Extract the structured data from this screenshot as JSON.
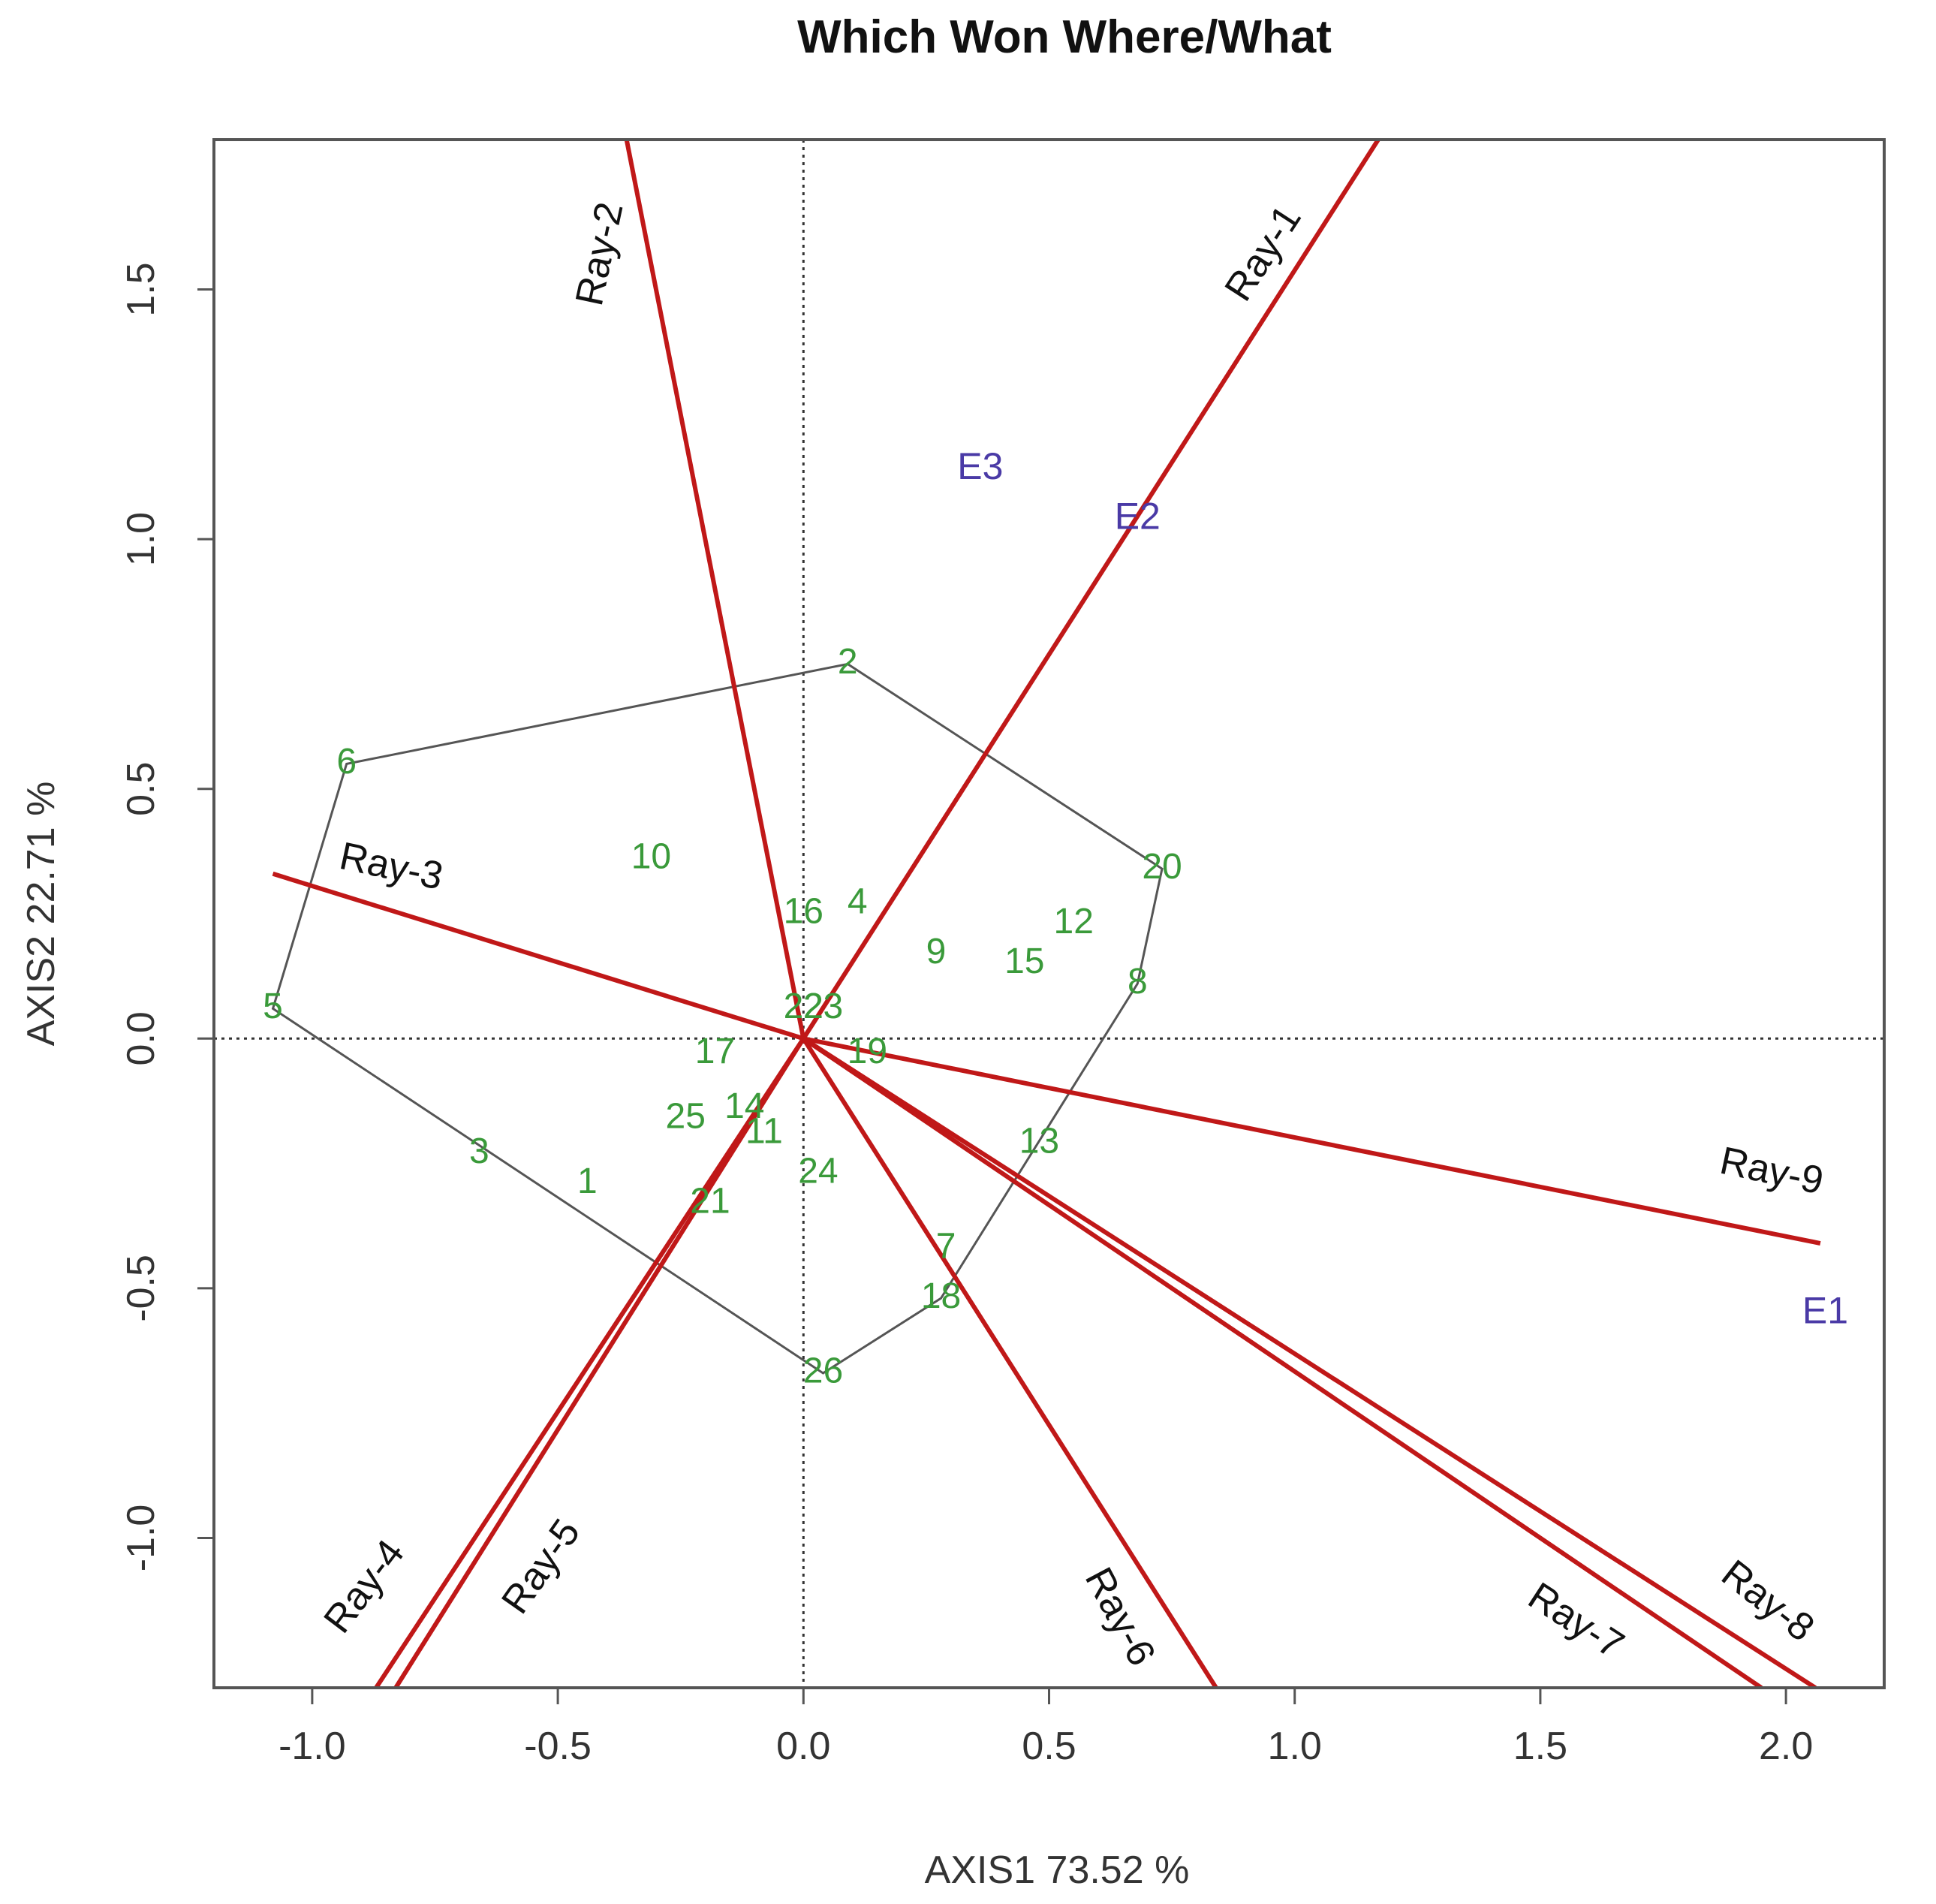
{
  "chart_data": {
    "type": "scatter",
    "subtype": "GGE biplot - which won where/what",
    "title": "Which Won Where/What",
    "xlabel": "AXIS1 73.52 %",
    "ylabel": "AXIS2 22.71 %",
    "xlim": [
      -1.2,
      2.2
    ],
    "ylim": [
      -1.3,
      1.8
    ],
    "xticks": [
      -1.0,
      -0.5,
      0.0,
      0.5,
      1.0,
      1.5,
      2.0
    ],
    "xtick_labels": [
      "-1.0",
      "-0.5",
      "0.0",
      "0.5",
      "1.0",
      "1.5",
      "2.0"
    ],
    "yticks": [
      -1.0,
      -0.5,
      0.0,
      0.5,
      1.0,
      1.5
    ],
    "ytick_labels": [
      "-1.0",
      "-0.5",
      "0.0",
      "0.5",
      "1.0",
      "1.5"
    ],
    "reference_lines": {
      "x": 0,
      "y": 0,
      "style": "dotted"
    },
    "genotypes": [
      {
        "label": "1",
        "x": -0.44,
        "y": -0.29
      },
      {
        "label": "2",
        "x": 0.09,
        "y": 0.75
      },
      {
        "label": "3",
        "x": -0.66,
        "y": -0.23
      },
      {
        "label": "4",
        "x": 0.11,
        "y": 0.27
      },
      {
        "label": "5",
        "x": -1.08,
        "y": 0.06
      },
      {
        "label": "6",
        "x": -0.93,
        "y": 0.55
      },
      {
        "label": "7",
        "x": 0.29,
        "y": -0.42
      },
      {
        "label": "8",
        "x": 0.68,
        "y": 0.11
      },
      {
        "label": "9",
        "x": 0.27,
        "y": 0.17
      },
      {
        "label": "10",
        "x": -0.31,
        "y": 0.36
      },
      {
        "label": "11",
        "x": -0.08,
        "y": -0.19
      },
      {
        "label": "12",
        "x": 0.55,
        "y": 0.23
      },
      {
        "label": "13",
        "x": 0.48,
        "y": -0.21
      },
      {
        "label": "14",
        "x": -0.12,
        "y": -0.14
      },
      {
        "label": "15",
        "x": 0.45,
        "y": 0.15
      },
      {
        "label": "16",
        "x": 0.0,
        "y": 0.25
      },
      {
        "label": "17",
        "x": -0.18,
        "y": -0.03
      },
      {
        "label": "18",
        "x": 0.28,
        "y": -0.52
      },
      {
        "label": "19",
        "x": 0.13,
        "y": -0.03
      },
      {
        "label": "20",
        "x": 0.73,
        "y": 0.34
      },
      {
        "label": "21",
        "x": -0.19,
        "y": -0.33
      },
      {
        "label": "22",
        "x": 0.0,
        "y": 0.06
      },
      {
        "label": "23",
        "x": 0.04,
        "y": 0.06
      },
      {
        "label": "24",
        "x": 0.03,
        "y": -0.27
      },
      {
        "label": "25",
        "x": -0.24,
        "y": -0.16
      },
      {
        "label": "26",
        "x": 0.04,
        "y": -0.67
      }
    ],
    "environments": [
      {
        "label": "E1",
        "x": 2.08,
        "y": -0.55
      },
      {
        "label": "E2",
        "x": 0.68,
        "y": 1.04
      },
      {
        "label": "E3",
        "x": 0.36,
        "y": 1.14
      }
    ],
    "polygon_vertices": [
      "2",
      "20",
      "8",
      "18",
      "26",
      "5",
      "6"
    ],
    "rays": [
      {
        "label": "Ray-1",
        "end": [
          1.17,
          1.8
        ],
        "label_at": [
          0.94,
          1.57
        ],
        "label_angle": -57
      },
      {
        "label": "Ray-2",
        "end": [
          -0.36,
          1.8
        ],
        "label_at": [
          -0.41,
          1.57
        ],
        "label_angle": -78
      },
      {
        "label": "Ray-3",
        "end": [
          -1.08,
          0.33
        ],
        "label_at": [
          -0.84,
          0.34
        ],
        "label_angle": 12
      },
      {
        "label": "Ray-4",
        "end": [
          -0.87,
          -1.3
        ],
        "label_at": [
          -0.89,
          -1.1
        ],
        "label_angle": -53
      },
      {
        "label": "Ray-5",
        "end": [
          -0.83,
          -1.3
        ],
        "label_at": [
          -0.53,
          -1.06
        ],
        "label_angle": -55
      },
      {
        "label": "Ray-6",
        "end": [
          0.84,
          -1.3
        ],
        "label_at": [
          0.64,
          -1.16
        ],
        "label_angle": 62
      },
      {
        "label": "Ray-7",
        "end": [
          1.95,
          -1.3
        ],
        "label_at": [
          1.57,
          -1.17
        ],
        "label_angle": 33
      },
      {
        "label": "Ray-8",
        "end": [
          2.06,
          -1.3
        ],
        "label_at": [
          1.96,
          -1.13
        ],
        "label_angle": 38
      },
      {
        "label": "Ray-9",
        "end": [
          2.07,
          -0.41
        ],
        "label_at": [
          1.97,
          -0.27
        ],
        "label_angle": 12
      }
    ]
  }
}
